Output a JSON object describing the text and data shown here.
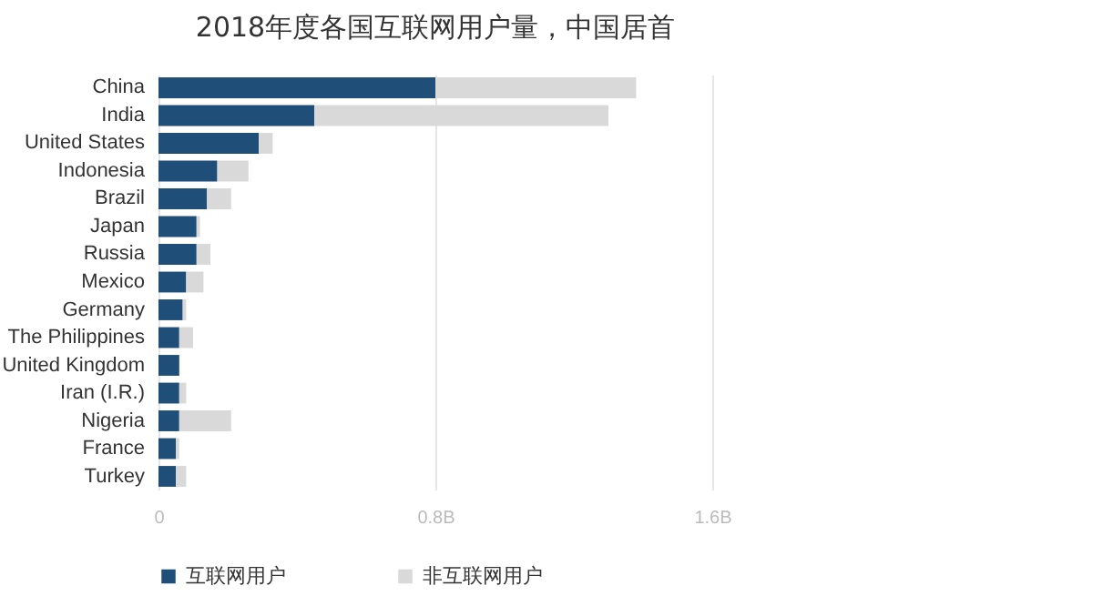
{
  "chart_data": {
    "type": "bar",
    "orientation": "horizontal",
    "stacked": true,
    "title": "2018年度各国互联网用户量，中国居首",
    "categories": [
      "China",
      "India",
      "United States",
      "Indonesia",
      "Brazil",
      "Japan",
      "Russia",
      "Mexico",
      "Germany",
      "The Philippines",
      "United Kingdom",
      "Iran (I.R.)",
      "Nigeria",
      "France",
      "Turkey"
    ],
    "series": [
      {
        "name": "互联网用户",
        "color": "#1f4e79",
        "values": [
          0.8,
          0.45,
          0.29,
          0.17,
          0.14,
          0.11,
          0.11,
          0.08,
          0.07,
          0.06,
          0.06,
          0.06,
          0.06,
          0.05,
          0.05
        ]
      },
      {
        "name": "非互联网用户",
        "color": "#d9d9d9",
        "values": [
          0.58,
          0.85,
          0.04,
          0.09,
          0.07,
          0.01,
          0.04,
          0.05,
          0.01,
          0.04,
          0.0,
          0.02,
          0.15,
          0.01,
          0.03
        ]
      }
    ],
    "xlim": [
      0,
      1.6
    ],
    "xticks": [
      0,
      {
        "value": 0.8,
        "label": "0.8B"
      },
      {
        "value": 1.6,
        "label": "1.6B"
      }
    ],
    "grid": "x",
    "legend": "bottom"
  }
}
